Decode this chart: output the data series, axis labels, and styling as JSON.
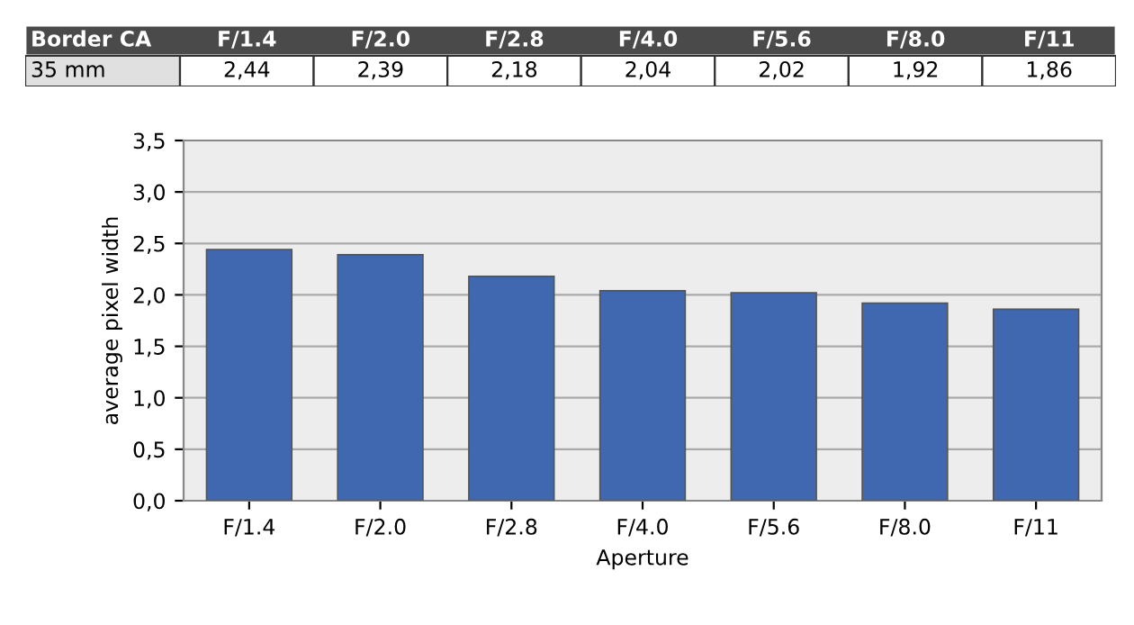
{
  "chart_data": {
    "type": "bar",
    "title": "Border CA",
    "xlabel": "Aperture",
    "ylabel": "average pixel width",
    "categories": [
      "F/1.4",
      "F/2.0",
      "F/2.8",
      "F/4.0",
      "F/5.6",
      "F/8.0",
      "F/11"
    ],
    "series": [
      {
        "name": "35 mm",
        "color": "#3f68b0",
        "values": [
          2.44,
          2.39,
          2.18,
          2.04,
          2.02,
          1.92,
          1.86
        ],
        "value_labels": [
          "2,44",
          "2,39",
          "2,18",
          "2,04",
          "2,02",
          "1,92",
          "1,86"
        ]
      }
    ],
    "ylim": [
      0,
      3.5
    ],
    "yticks": [
      {
        "value": 0,
        "label": "0,0"
      },
      {
        "value": 0.5,
        "label": "0,5"
      },
      {
        "value": 1,
        "label": "1,0"
      },
      {
        "value": 1.5,
        "label": "1,5"
      },
      {
        "value": 2,
        "label": "2,0"
      },
      {
        "value": 2.5,
        "label": "2,5"
      },
      {
        "value": 3,
        "label": "3,0"
      },
      {
        "value": 3.5,
        "label": "3,5"
      }
    ],
    "grid": "y"
  }
}
